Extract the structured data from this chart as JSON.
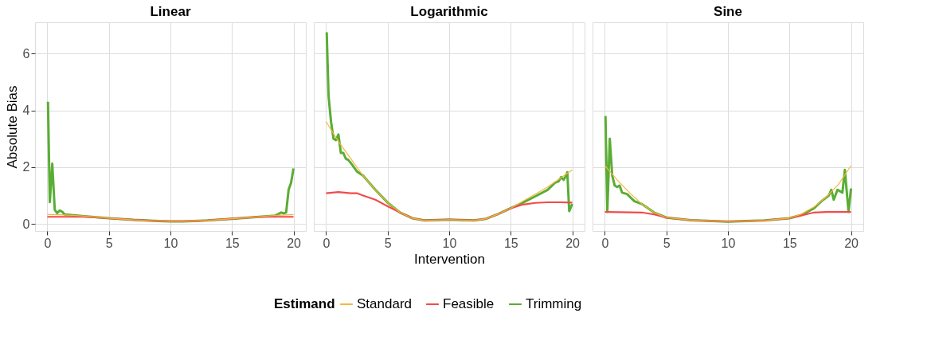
{
  "chart_data": [
    {
      "type": "line",
      "title": "Linear",
      "ylabel": "Absolute Bias",
      "xlim": [
        -1,
        21
      ],
      "ylim": [
        -0.25,
        7.1
      ],
      "xticks": [
        0,
        5,
        10,
        15,
        20
      ],
      "yticks": [
        0,
        2,
        4,
        6
      ],
      "grid": true,
      "tick_labels": true,
      "legend": "bottom",
      "legend_title": "Estimand",
      "series": [
        {
          "name": "Standard",
          "color": "#f8b540",
          "x": [
            0,
            1,
            2,
            3,
            5,
            7,
            9,
            10,
            11,
            13,
            15,
            17,
            18,
            19,
            20
          ],
          "values": [
            0.33,
            0.32,
            0.3,
            0.27,
            0.2,
            0.14,
            0.1,
            0.09,
            0.09,
            0.12,
            0.18,
            0.24,
            0.28,
            0.31,
            0.33
          ]
        },
        {
          "name": "Feasible",
          "color": "#f24a4a",
          "x": [
            0,
            1,
            2,
            3,
            5,
            7,
            9,
            10,
            11,
            13,
            15,
            17,
            18,
            19,
            20
          ],
          "values": [
            0.25,
            0.25,
            0.25,
            0.25,
            0.2,
            0.14,
            0.1,
            0.09,
            0.09,
            0.12,
            0.18,
            0.24,
            0.25,
            0.25,
            0.25
          ]
        },
        {
          "name": "Trimming",
          "color": "#5aad34",
          "x": [
            0.05,
            0.2,
            0.4,
            0.6,
            0.8,
            1.0,
            1.2,
            1.4,
            3,
            5,
            7,
            9,
            10,
            11,
            13,
            15,
            17,
            18.5,
            19.0,
            19.2,
            19.4,
            19.6,
            19.8,
            20.0
          ],
          "values": [
            4.3,
            0.77,
            2.12,
            0.5,
            0.38,
            0.47,
            0.43,
            0.33,
            0.27,
            0.2,
            0.14,
            0.1,
            0.09,
            0.09,
            0.12,
            0.18,
            0.24,
            0.29,
            0.4,
            0.37,
            0.4,
            1.2,
            1.45,
            1.95
          ]
        }
      ]
    },
    {
      "type": "line",
      "title": "Logarithmic",
      "xlabel": "Intervention",
      "xlim": [
        -1,
        21
      ],
      "ylim": [
        -0.25,
        7.1
      ],
      "xticks": [
        0,
        5,
        10,
        15,
        20
      ],
      "yticks": [
        0,
        2,
        4,
        6
      ],
      "grid": true,
      "tick_labels": "x",
      "series": [
        {
          "name": "Standard",
          "color": "#f8b540",
          "x": [
            0,
            1,
            2,
            3,
            4,
            5,
            6,
            7,
            8,
            10,
            12,
            13,
            14,
            15,
            16,
            17,
            18,
            19,
            20
          ],
          "values": [
            3.6,
            2.9,
            2.3,
            1.7,
            1.2,
            0.75,
            0.4,
            0.2,
            0.12,
            0.15,
            0.12,
            0.18,
            0.35,
            0.55,
            0.8,
            1.05,
            1.3,
            1.6,
            1.9
          ]
        },
        {
          "name": "Feasible",
          "color": "#f24a4a",
          "x": [
            0,
            1,
            2,
            2.5,
            3,
            4,
            5,
            6,
            7,
            8,
            10,
            12,
            13,
            14,
            15,
            16,
            17,
            18,
            19,
            20
          ],
          "values": [
            1.08,
            1.12,
            1.08,
            1.08,
            1.0,
            0.85,
            0.62,
            0.4,
            0.2,
            0.12,
            0.15,
            0.12,
            0.18,
            0.35,
            0.55,
            0.68,
            0.74,
            0.76,
            0.76,
            0.75
          ]
        },
        {
          "name": "Trimming",
          "color": "#5aad34",
          "x": [
            0.05,
            0.2,
            0.4,
            0.6,
            0.8,
            1.0,
            1.2,
            1.4,
            1.6,
            1.8,
            2,
            2.5,
            3,
            4,
            5,
            6,
            7,
            8,
            10,
            12,
            13,
            14,
            15,
            16,
            17,
            18,
            18.6,
            18.9,
            19.1,
            19.3,
            19.5,
            19.6,
            19.75,
            20
          ],
          "values": [
            6.75,
            4.5,
            3.6,
            3.0,
            2.95,
            3.15,
            2.5,
            2.5,
            2.3,
            2.25,
            2.15,
            1.85,
            1.7,
            1.2,
            0.75,
            0.4,
            0.2,
            0.12,
            0.15,
            0.12,
            0.18,
            0.35,
            0.55,
            0.75,
            0.97,
            1.2,
            1.45,
            1.5,
            1.65,
            1.55,
            1.7,
            1.82,
            0.45,
            0.7
          ]
        }
      ]
    },
    {
      "type": "line",
      "title": "Sine",
      "xlim": [
        -1,
        21
      ],
      "ylim": [
        -0.25,
        7.1
      ],
      "xticks": [
        0,
        5,
        10,
        15,
        20
      ],
      "yticks": [
        0,
        2,
        4,
        6
      ],
      "grid": true,
      "tick_labels": "x",
      "series": [
        {
          "name": "Standard",
          "color": "#f8b540",
          "x": [
            0,
            1,
            2,
            3,
            4,
            5,
            7,
            10,
            13,
            15,
            16,
            17,
            18,
            19,
            20
          ],
          "values": [
            2.05,
            1.55,
            1.1,
            0.7,
            0.4,
            0.22,
            0.13,
            0.08,
            0.12,
            0.2,
            0.35,
            0.6,
            0.95,
            1.4,
            2.05
          ]
        },
        {
          "name": "Feasible",
          "color": "#f24a4a",
          "x": [
            0,
            3,
            4,
            5,
            7,
            10,
            13,
            15,
            16,
            17,
            18,
            20
          ],
          "values": [
            0.42,
            0.4,
            0.33,
            0.22,
            0.13,
            0.08,
            0.12,
            0.2,
            0.3,
            0.4,
            0.42,
            0.42
          ]
        },
        {
          "name": "Trimming",
          "color": "#5aad34",
          "x": [
            0.05,
            0.2,
            0.4,
            0.6,
            0.8,
            1.0,
            1.2,
            1.4,
            1.8,
            2.4,
            3,
            4,
            5,
            7,
            10,
            13,
            15,
            16,
            17,
            17.6,
            18.2,
            18.4,
            18.6,
            18.9,
            19.3,
            19.5,
            19.8,
            20
          ],
          "values": [
            3.8,
            0.42,
            3.0,
            1.7,
            1.35,
            1.3,
            1.35,
            1.1,
            1.05,
            0.8,
            0.7,
            0.4,
            0.22,
            0.13,
            0.08,
            0.12,
            0.2,
            0.32,
            0.55,
            0.8,
            1.0,
            1.2,
            0.85,
            1.2,
            1.1,
            1.9,
            0.42,
            1.25
          ]
        }
      ]
    }
  ]
}
